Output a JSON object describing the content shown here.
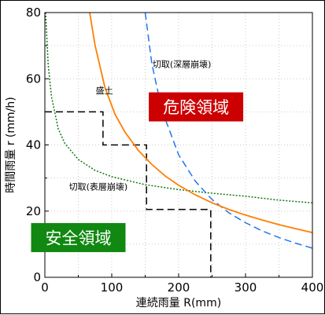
{
  "chart_data": {
    "type": "line",
    "xlabel": "連続雨量 R(mm)",
    "ylabel": "時間雨量 r (mm/h)",
    "xlim": [
      0,
      400
    ],
    "ylim": [
      0,
      80
    ],
    "xticks": [
      0,
      100,
      200,
      300,
      400
    ],
    "yticks": [
      0,
      20,
      40,
      60,
      80
    ],
    "grid": true,
    "series": [
      {
        "name": "盛土",
        "style": "dashed",
        "color": "#000000",
        "x": [
          0,
          87,
          87,
          152,
          152,
          248,
          248
        ],
        "y": [
          50,
          50,
          40,
          40,
          20.5,
          20.5,
          0
        ]
      },
      {
        "name": "切取(表層崩壊)",
        "style": "dotted",
        "color": "#117711",
        "x": [
          1,
          5,
          10,
          20,
          30,
          50,
          75,
          100,
          150,
          200,
          250,
          300,
          350,
          400
        ],
        "y": [
          80,
          64,
          54.5,
          44.9,
          40.4,
          35.6,
          32.3,
          30.4,
          28.0,
          26.5,
          25.4,
          24.5,
          23.3,
          22.5
        ]
      },
      {
        "name": "切取(深層崩壊)",
        "style": "dashed",
        "color": "#2277ee",
        "x": [
          150,
          160,
          175,
          200,
          225,
          250,
          275,
          300,
          325,
          350,
          375,
          400
        ],
        "y": [
          80,
          64.5,
          50.5,
          37.0,
          29.0,
          23.5,
          19.5,
          16.5,
          14.0,
          12.0,
          10.3,
          8.8
        ]
      },
      {
        "name": "",
        "style": "solid",
        "color": "#ff7f00",
        "x": [
          67,
          75,
          90,
          105,
          120,
          140,
          160,
          180,
          200,
          225,
          250,
          275,
          300,
          325,
          350,
          375,
          400
        ],
        "y": [
          80,
          70.1,
          57.2,
          49.2,
          43.8,
          38.3,
          34.1,
          30.6,
          27.8,
          24.9,
          22.5,
          20.5,
          18.8,
          17.3,
          15.9,
          14.7,
          13.5
        ]
      }
    ],
    "annotations": [
      {
        "id": "moritsuchi",
        "text": "盛土",
        "x": 76,
        "y": 55.5
      },
      {
        "id": "shallow",
        "text": "切取(表層崩壊)",
        "x": 36,
        "y": 26.5
      },
      {
        "id": "deep",
        "text": "切取(深層崩壊)",
        "x": 161,
        "y": 63.5
      }
    ],
    "zones": [
      {
        "id": "danger",
        "text": "危険領域",
        "color": "#cc0000",
        "x": 226,
        "y": 51.5
      },
      {
        "id": "safe",
        "text": "安全領域",
        "color": "#118811",
        "x": 50,
        "y": 12
      }
    ]
  }
}
